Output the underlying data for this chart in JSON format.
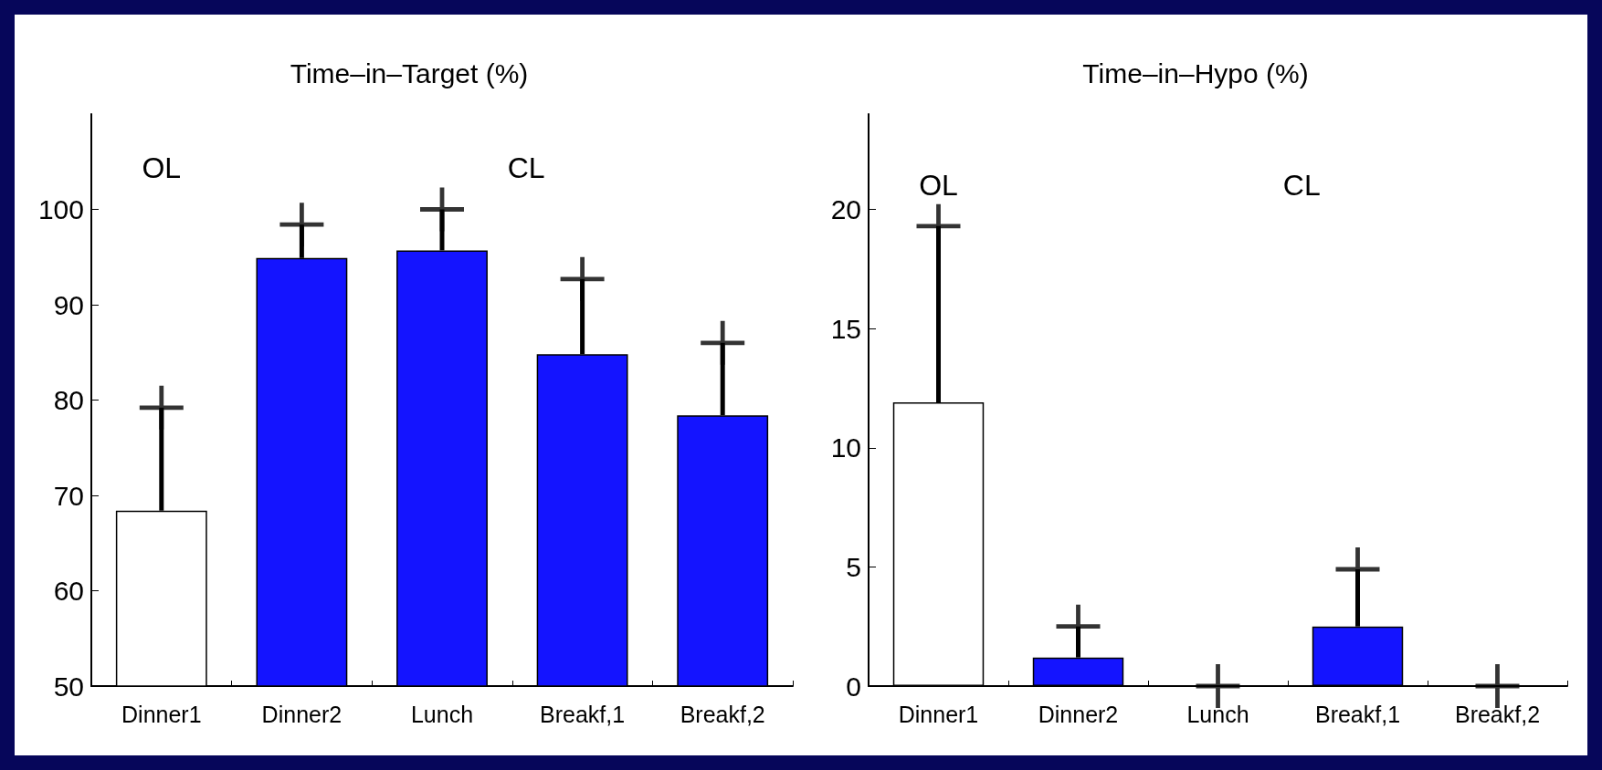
{
  "chart_data": [
    {
      "type": "bar",
      "title": "Time–in–Target (%)",
      "categories": [
        "Dinner1",
        "Dinner2",
        "Lunch",
        "Breakf,1",
        "Breakf,2"
      ],
      "series": [
        {
          "type": "bar",
          "values": [
            68.4,
            94.9,
            95.7,
            84.8,
            78.4
          ],
          "errors": [
            [
              68.4,
              79.2
            ],
            [
              94.9,
              98.4
            ],
            [
              95.7,
              100
            ],
            [
              84.8,
              92.7
            ],
            [
              78.4,
              86
            ]
          ],
          "colors": [
            "#ffffff",
            "#1414ff",
            "#1414ff",
            "#1414ff",
            "#1414ff"
          ]
        },
        {
          "type": "scatter",
          "x": [
            "Dinner1",
            "Dinner2",
            "Lunch",
            "Breakf,1",
            "Breakf,2"
          ],
          "values": [
            79.2,
            98.4,
            100,
            92.7,
            86
          ],
          "color": "#000000",
          "marker": "cross"
        }
      ],
      "ylim": [
        50,
        110
      ],
      "yticks": [
        50,
        60,
        70,
        80,
        90,
        100
      ],
      "grid": false,
      "annotations": [
        "OL",
        "CL"
      ]
    },
    {
      "type": "bar",
      "title": "Time–in–Hypo (%)",
      "categories": [
        "Dinner1",
        "Dinner2",
        "Lunch",
        "Breakf,1",
        "Breakf,2"
      ],
      "series": [
        {
          "type": "bar",
          "values": [
            11.9,
            1.2,
            0,
            2.5,
            0
          ],
          "errors": [
            [
              11.9,
              19.3
            ],
            [
              1.2,
              2.5
            ],
            null,
            [
              2.5,
              4.9
            ],
            null
          ],
          "colors": [
            "#ffffff",
            "#1414ff",
            "#1414ff",
            "#1414ff",
            "#1414ff"
          ]
        },
        {
          "type": "scatter",
          "x": [
            "Dinner1",
            "Dinner2",
            "Lunch",
            "Breakf,1",
            "Breakf,2"
          ],
          "values": [
            19.3,
            2.5,
            0,
            4.9,
            0
          ],
          "color": "#000000",
          "marker": "cross"
        }
      ],
      "ylim": [
        0,
        24
      ],
      "yticks": [
        0,
        5,
        10,
        15,
        20
      ],
      "grid": false,
      "annotations": [
        "OL",
        "CL"
      ]
    }
  ]
}
